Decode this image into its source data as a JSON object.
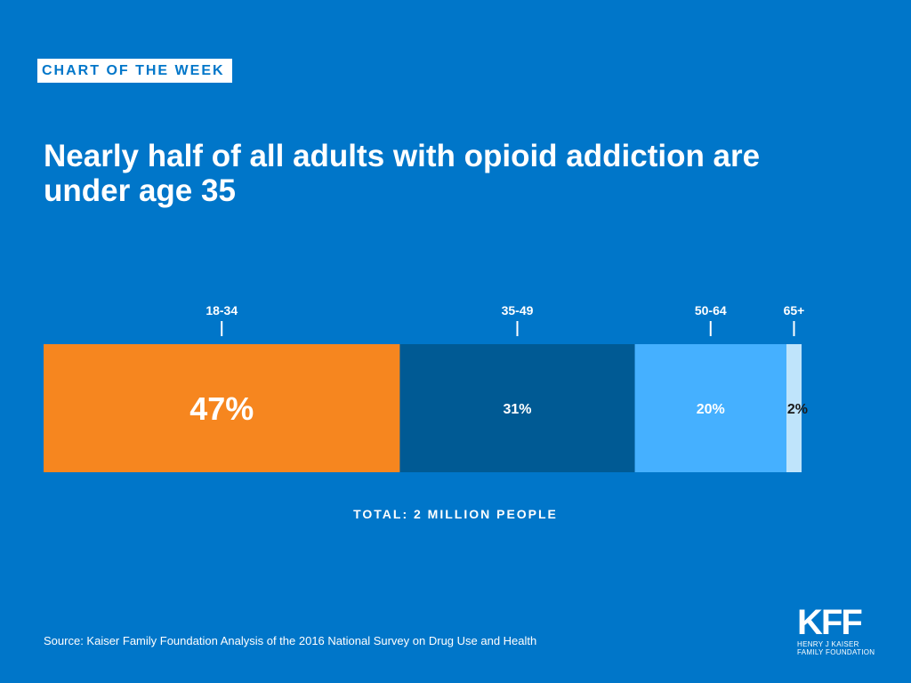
{
  "badge": "CHART OF THE WEEK",
  "title": "Nearly half of all adults with opioid addiction are under age 35",
  "total_label": "TOTAL: 2 MILLION PEOPLE",
  "source": "Source: Kaiser Family Foundation Analysis of the 2016 National Survey on Drug Use and Health",
  "logo": {
    "mark": "KFF",
    "line1": "HENRY J KAISER",
    "line2": "FAMILY FOUNDATION"
  },
  "colors": {
    "background": "#0076c9",
    "segment_18_34": "#f6861f",
    "segment_35_49": "#005a94",
    "segment_50_64": "#45b0ff",
    "segment_65_plus": "#bfe4fb"
  },
  "chart_data": {
    "type": "bar",
    "orientation": "horizontal-stacked",
    "title": "Nearly half of all adults with opioid addiction are under age 35",
    "categories": [
      "18-34",
      "35-49",
      "50-64",
      "65+"
    ],
    "values": [
      47,
      31,
      20,
      2
    ],
    "value_labels": [
      "47%",
      "31%",
      "20%",
      "2%"
    ],
    "unit": "%",
    "total": "TOTAL: 2 MILLION PEOPLE",
    "colors": [
      "#f6861f",
      "#005a94",
      "#45b0ff",
      "#bfe4fb"
    ],
    "label_colors": [
      "#ffffff",
      "#ffffff",
      "#ffffff",
      "#1a1a1a"
    ],
    "grid": false,
    "legend": "none"
  }
}
